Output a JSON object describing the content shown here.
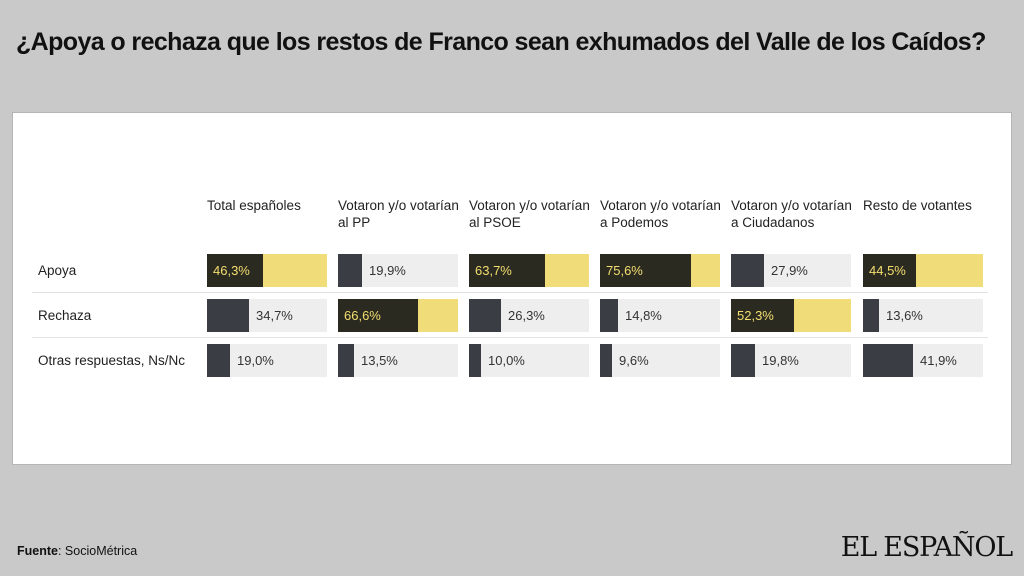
{
  "title": "¿Apoya o rechaza que los restos de Franco sean exhumados del Valle de los Caídos?",
  "colors": {
    "background": "#c9c9c9",
    "panel": "#ffffff",
    "highlight": "#f0dc78",
    "highlight_dark": "#2b2a21",
    "bar": "#3a3d44",
    "track": "#eeeeee",
    "label_on_dark": "#f3de6f"
  },
  "chart_data": {
    "type": "table",
    "columns": [
      "Total españoles",
      "Votaron y/o votarían al PP",
      "Votaron y/o votarían al PSOE",
      "Votaron y/o votarían a Podemos",
      "Votaron y/o votarían a Ciudadanos",
      "Resto de votantes"
    ],
    "rows": [
      {
        "label": "Apoya",
        "values": [
          46.3,
          19.9,
          63.7,
          75.6,
          27.9,
          44.5
        ],
        "labels": [
          "46,3%",
          "19,9%",
          "63,7%",
          "75,6%",
          "27,9%",
          "44,5%"
        ]
      },
      {
        "label": "Rechaza",
        "values": [
          34.7,
          66.6,
          26.3,
          14.8,
          52.3,
          13.6
        ],
        "labels": [
          "34,7%",
          "66,6%",
          "26,3%",
          "14,8%",
          "52,3%",
          "13,6%"
        ]
      },
      {
        "label": "Otras respuestas, Ns/Nc",
        "values": [
          19.0,
          13.5,
          10.0,
          9.6,
          19.8,
          41.9
        ],
        "labels": [
          "19,0%",
          "13,5%",
          "10,0%",
          "9,6%",
          "19,8%",
          "41,9%"
        ]
      }
    ],
    "value_range": [
      0,
      100
    ]
  },
  "footer": {
    "source_label": "Fuente",
    "source": ": SocioMétrica"
  },
  "logo_text": "EL ESPAÑOL"
}
